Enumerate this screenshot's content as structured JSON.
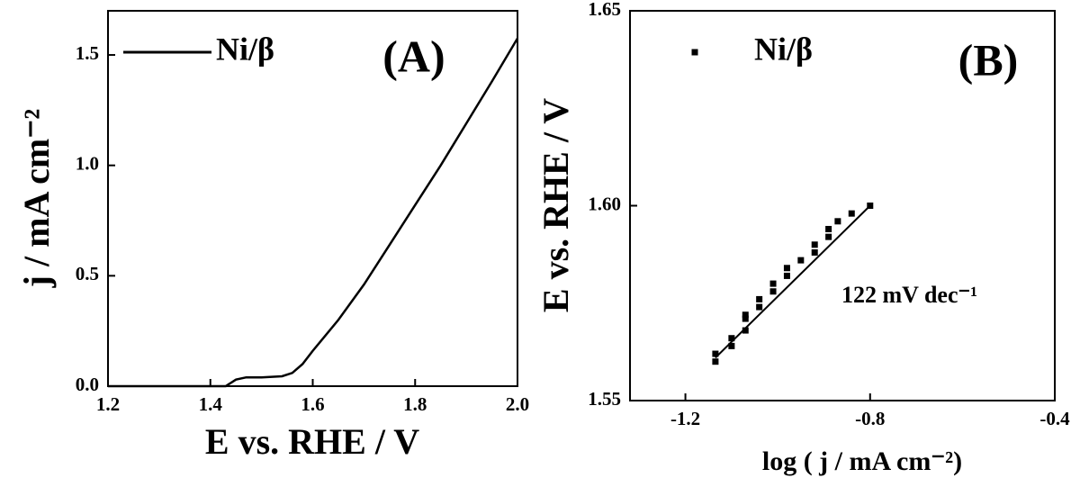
{
  "chart_data": [
    {
      "type": "line",
      "panel_label": "(A)",
      "xlabel": "E vs. RHE / V",
      "ylabel": "j / mA cm⁻²",
      "xlim": [
        1.2,
        2.0
      ],
      "ylim": [
        0,
        1.7
      ],
      "xticks": [
        1.2,
        1.4,
        1.6,
        1.8,
        {
          "value": 2.0,
          "label": "2.0"
        }
      ],
      "yticks": [
        {
          "value": 0,
          "label": "0.0"
        },
        0.5,
        {
          "value": 1.0,
          "label": "1.0"
        },
        1.5
      ],
      "x": [
        1.2,
        1.3,
        1.4,
        1.43,
        1.45,
        1.47,
        1.5,
        1.54,
        1.56,
        1.58,
        1.6,
        1.65,
        1.7,
        1.75,
        1.8,
        1.85,
        1.9,
        1.95,
        2.0
      ],
      "series": [
        {
          "name": "Ni/β",
          "color": "#000000",
          "values": [
            0,
            0,
            0,
            0,
            0.03,
            0.04,
            0.04,
            0.045,
            0.06,
            0.1,
            0.16,
            0.3,
            0.46,
            0.64,
            0.82,
            1.0,
            1.19,
            1.38,
            1.575
          ]
        }
      ]
    },
    {
      "type": "scatter",
      "panel_label": "(B)",
      "xlabel": "log ( j / mA cm⁻²)",
      "ylabel": "E vs. RHE / V",
      "annotation": "122 mV dec⁻¹",
      "xlim": [
        -1.32,
        -0.4
      ],
      "ylim": [
        1.55,
        1.65
      ],
      "xticks": [
        -1.2,
        -0.8,
        -0.4
      ],
      "yticks": [
        1.55,
        {
          "value": 1.6,
          "label": "1.60"
        },
        1.65
      ],
      "series": [
        {
          "name": "Ni/β",
          "color": "#000000",
          "x": [
            -1.135,
            -1.135,
            -1.1,
            -1.1,
            -1.07,
            -1.07,
            -1.07,
            -1.04,
            -1.04,
            -1.01,
            -1.01,
            -0.98,
            -0.98,
            -0.95,
            -0.92,
            -0.92,
            -0.89,
            -0.89,
            -0.87,
            -0.84,
            -0.8
          ],
          "values": [
            1.56,
            1.562,
            1.564,
            1.566,
            1.568,
            1.571,
            1.572,
            1.574,
            1.576,
            1.578,
            1.58,
            1.582,
            1.584,
            1.586,
            1.588,
            1.59,
            1.592,
            1.594,
            1.596,
            1.598,
            1.6
          ]
        }
      ],
      "fit": {
        "x": [
          -1.135,
          -0.8
        ],
        "y": [
          1.561,
          1.6
        ]
      }
    }
  ]
}
